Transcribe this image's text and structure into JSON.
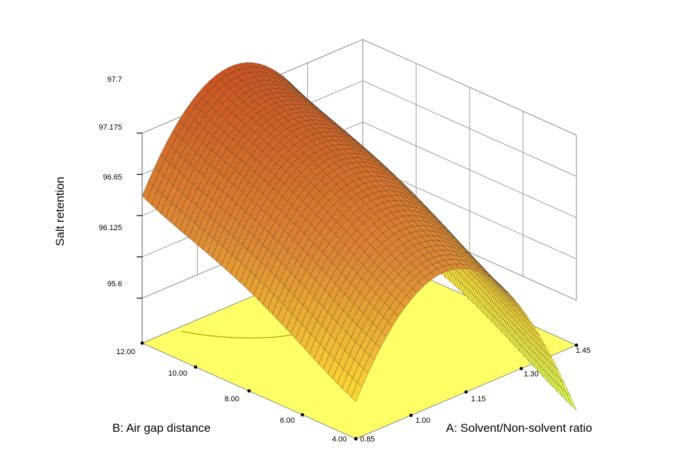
{
  "chart_data": {
    "type": "surface3d",
    "zlabel": "Salt retention",
    "xlabel": "A: Solvent/Non-solvent ratio",
    "ylabel": "B: Air gap distance",
    "x_ticks": [
      "0.85",
      "1.00",
      "1.15",
      "1.30",
      "1.45"
    ],
    "y_ticks": [
      "4.00",
      "6.00",
      "8.00",
      "10.00",
      "12.00"
    ],
    "z_ticks": [
      "95.6",
      "96.125",
      "96.65",
      "97.175",
      "97.7"
    ],
    "x_range": [
      0.85,
      1.45
    ],
    "y_range": [
      4.0,
      12.0
    ],
    "z_range": [
      95.6,
      97.7
    ],
    "x": [
      0.85,
      1.0,
      1.15,
      1.3,
      1.45
    ],
    "y": [
      4.0,
      6.0,
      8.0,
      10.0,
      12.0
    ],
    "z": [
      [
        95.5,
        96.5,
        96.6,
        95.8,
        94.2
      ],
      [
        95.9,
        96.9,
        97.0,
        96.2,
        94.6
      ],
      [
        96.3,
        97.3,
        97.4,
        96.6,
        95.0
      ],
      [
        96.6,
        97.6,
        97.7,
        96.9,
        95.3
      ],
      [
        96.9,
        97.9,
        98.0,
        97.2,
        95.6
      ]
    ],
    "floor_color": "#ffff66",
    "surface_colors": [
      "#ddff55",
      "#ffdd33",
      "#dd8833",
      "#cc5522"
    ],
    "grid": true
  }
}
